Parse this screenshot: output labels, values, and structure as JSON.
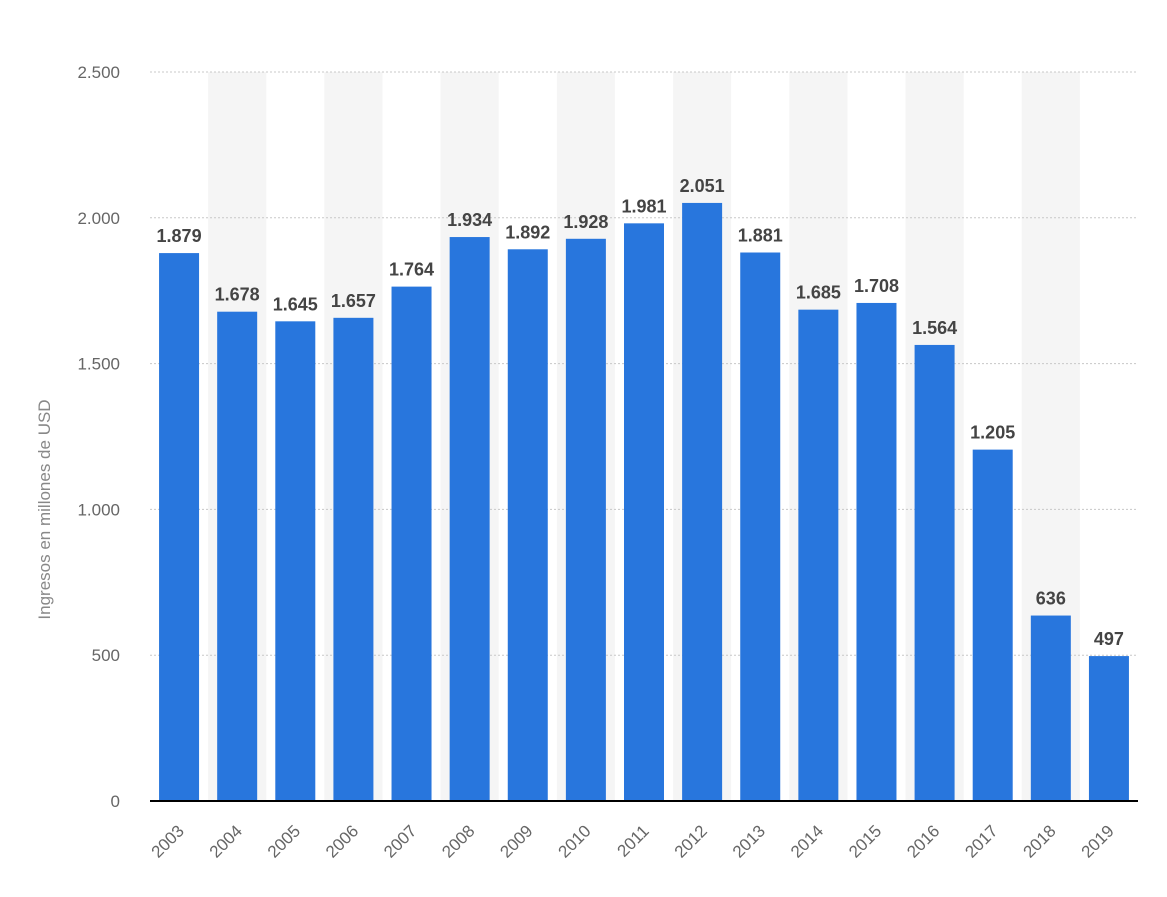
{
  "chart_data": {
    "type": "bar",
    "categories": [
      "2003",
      "2004",
      "2005",
      "2006",
      "2007",
      "2008",
      "2009",
      "2010",
      "2011",
      "2012",
      "2013",
      "2014",
      "2015",
      "2016",
      "2017",
      "2018",
      "2019"
    ],
    "values": [
      1879,
      1678,
      1645,
      1657,
      1764,
      1934,
      1892,
      1928,
      1981,
      2051,
      1881,
      1685,
      1708,
      1564,
      1205,
      636,
      497
    ],
    "value_labels": [
      "1.879",
      "1.678",
      "1.645",
      "1.657",
      "1.764",
      "1.934",
      "1.892",
      "1.928",
      "1.981",
      "2.051",
      "1.881",
      "1.685",
      "1.708",
      "1.564",
      "1.205",
      "636",
      "497"
    ],
    "ylabel": "Ingresos en millones de USD",
    "xlabel": "",
    "ylim": [
      0,
      2500
    ],
    "yticks": [
      0,
      500,
      1000,
      1500,
      2000,
      2500
    ],
    "ytick_labels": [
      "0",
      "500",
      "1.000",
      "1.500",
      "2.000",
      "2.500"
    ],
    "grid": true,
    "colors": {
      "bar": "#2876dd",
      "value_label": "#444444",
      "tick_label": "#666666",
      "axis_label": "#888888",
      "grid": "#c8c8c8",
      "band": "#f5f5f5",
      "baseline": "#000000"
    }
  }
}
